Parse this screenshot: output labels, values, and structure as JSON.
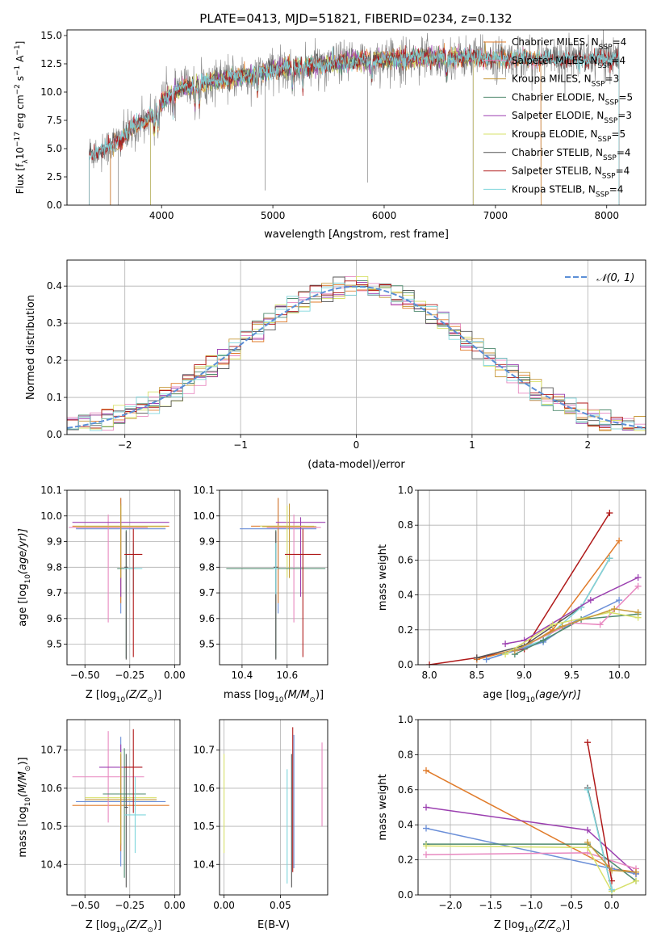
{
  "figure": {
    "title": "PLATE=0413, MJD=51821, FIBERID=0234, z=0.132"
  },
  "colors": {
    "Chabrier MILES": "#e07b2a",
    "Salpeter MILES": "#e889c0",
    "Kroupa MILES": "#c79a3c",
    "Chabrier ELODIE": "#4f8a6e",
    "Salpeter ELODIE": "#9b3fb0",
    "Kroupa ELODIE": "#d7e06a",
    "Chabrier STELIB": "#555555",
    "Salpeter STELIB": "#b01a1a",
    "Kroupa STELIB": "#7fd6dc",
    "gauss": "#5b8fd6",
    "extra_blue": "#6b8fd8"
  },
  "legend": {
    "items": [
      {
        "label": "Chabrier MILES, N",
        "sub": "SSP",
        "val": "=4"
      },
      {
        "label": "Salpeter MILES, N",
        "sub": "SSP",
        "val": "=4"
      },
      {
        "label": "Kroupa MILES, N",
        "sub": "SSP",
        "val": "=3"
      },
      {
        "label": "Chabrier ELODIE, N",
        "sub": "SSP",
        "val": "=5"
      },
      {
        "label": "Salpeter ELODIE, N",
        "sub": "SSP",
        "val": "=3"
      },
      {
        "label": "Kroupa ELODIE, N",
        "sub": "SSP",
        "val": "=5"
      },
      {
        "label": "Chabrier STELIB, N",
        "sub": "SSP",
        "val": "=4"
      },
      {
        "label": "Salpeter STELIB, N",
        "sub": "SSP",
        "val": "=4"
      },
      {
        "label": "Kroupa STELIB, N",
        "sub": "SSP",
        "val": "=4"
      }
    ],
    "gauss_label": "𝒩(0, 1)"
  },
  "chart_data": [
    {
      "id": "spectrum",
      "type": "line",
      "xlabel": "wavelength [Angstrom, rest frame]",
      "ylabel": "Flux [f",
      "ylabel_parts": [
        "Flux [f",
        "λ",
        "10",
        "−17",
        " erg cm",
        "−2",
        " s",
        "−1",
        " A",
        "−1",
        "]"
      ],
      "xlim": [
        3150,
        8350
      ],
      "ylim": [
        0,
        15.5
      ],
      "xticks": [
        4000,
        5000,
        6000,
        7000,
        8000
      ],
      "yticks": [
        0.0,
        2.5,
        5.0,
        7.5,
        10.0,
        12.5,
        15.0
      ],
      "ytick_labels": [
        "0.0",
        "2.5",
        "5.0",
        "7.5",
        "10.0",
        "12.5",
        "15.0"
      ],
      "grid": false,
      "continuum": {
        "x": [
          3350,
          3500,
          3650,
          3800,
          3950,
          4050,
          4200,
          4400,
          4600,
          4800,
          5000,
          5200,
          5400,
          5600,
          5800,
          6000,
          6200,
          6400,
          6600,
          6800,
          7000,
          7200,
          7400,
          7600,
          7800,
          8000,
          8100
        ],
        "y": [
          4.6,
          5.0,
          6.0,
          7.2,
          8.3,
          9.7,
          10.4,
          10.9,
          11.2,
          11.5,
          12.0,
          12.2,
          12.4,
          12.6,
          12.8,
          12.9,
          13.0,
          13.1,
          13.1,
          13.1,
          13.0,
          13.0,
          12.9,
          12.9,
          12.9,
          13.0,
          13.1
        ]
      }
    },
    {
      "id": "residuals",
      "type": "histogram",
      "xlabel": "(data-model)/error",
      "ylabel": "Normed distribution",
      "xlim": [
        -2.5,
        2.5
      ],
      "ylim": [
        0,
        0.47
      ],
      "xticks": [
        -2,
        -1,
        0,
        1,
        2
      ],
      "xtick_labels": [
        "−2",
        "−1",
        "0",
        "1",
        "2"
      ],
      "yticks": [
        0.0,
        0.1,
        0.2,
        0.3,
        0.4
      ],
      "ytick_labels": [
        "0.0",
        "0.1",
        "0.2",
        "0.3",
        "0.4"
      ],
      "grid": true,
      "legend_position": "top-right",
      "bin_width": 0.1
    },
    {
      "id": "age_vs_Z",
      "type": "errorbar",
      "xlabel": "Z [log",
      "xlabel_parts": [
        "Z [log",
        "10",
        "(Z/Z",
        "⊙",
        ")]"
      ],
      "ylabel_parts": [
        "age  [log",
        "10",
        "(age/yr)]"
      ],
      "xlim": [
        -0.6,
        0.03
      ],
      "ylim": [
        9.42,
        10.1
      ],
      "xticks": [
        -0.5,
        -0.25,
        0.0
      ],
      "xtick_labels": [
        "−0.50",
        "−0.25",
        "0.00"
      ],
      "yticks": [
        9.5,
        9.6,
        9.7,
        9.8,
        9.9,
        10.0,
        10.1
      ],
      "ytick_labels": [
        "9.5",
        "9.6",
        "9.7",
        "9.8",
        "9.9",
        "10.0",
        "10.1"
      ],
      "grid": true,
      "points": [
        {
          "series": "extra_blue",
          "x": -0.3,
          "xerr": 0.25,
          "y": 9.95,
          "yerr_lo": 0.33,
          "yerr_hi": 0.12
        },
        {
          "series": "Chabrier MILES",
          "x": -0.3,
          "xerr": 0.27,
          "y": 9.96,
          "yerr_lo": 0.3,
          "yerr_hi": 0.11
        },
        {
          "series": "Salpeter MILES",
          "x": -0.37,
          "xerr": 0.22,
          "y": 9.955,
          "yerr_lo": 0.37,
          "yerr_hi": 0.05
        },
        {
          "series": "Salpeter ELODIE",
          "x": -0.3,
          "xerr": 0.27,
          "y": 9.975,
          "yerr_lo": 0.29,
          "yerr_hi": 0.02
        },
        {
          "series": "Kroupa ELODIE",
          "x": -0.3,
          "xerr": 0.25,
          "y": 9.96,
          "yerr_lo": 0.2,
          "yerr_hi": 0.08
        },
        {
          "series": "Kroupa MILES",
          "x": -0.3,
          "xerr": 0.25,
          "y": 9.958,
          "yerr_lo": 0.2,
          "yerr_hi": 0.09
        },
        {
          "series": "Chabrier ELODIE",
          "x": -0.27,
          "xerr": 0.05,
          "y": 9.795,
          "yerr_lo": 0.35,
          "yerr_hi": 0.15
        },
        {
          "series": "Chabrier STELIB",
          "x": -0.27,
          "xerr": 0.01,
          "y": 9.8,
          "yerr_lo": 0.36,
          "yerr_hi": 0.14
        },
        {
          "series": "Kroupa STELIB",
          "x": -0.23,
          "xerr": 0.05,
          "y": 9.795,
          "yerr_lo": 0.1,
          "yerr_hi": 0.1
        },
        {
          "series": "Salpeter STELIB",
          "x": -0.23,
          "xerr": 0.05,
          "y": 9.85,
          "yerr_lo": 0.4,
          "yerr_hi": 0.1
        }
      ]
    },
    {
      "id": "age_vs_mass",
      "type": "errorbar",
      "xlabel_parts": [
        "mass [log",
        "10",
        "(M/M",
        "⊙",
        ")]"
      ],
      "xlim": [
        10.3,
        10.78
      ],
      "ylim": [
        9.42,
        10.1
      ],
      "xticks": [
        10.4,
        10.6
      ],
      "xtick_labels": [
        "10.4",
        "10.6"
      ],
      "yticks": [
        9.5,
        9.6,
        9.7,
        9.8,
        9.9,
        10.0,
        10.1
      ],
      "ytick_labels": [
        "9.5",
        "9.6",
        "9.7",
        "9.8",
        "9.9",
        "10.0",
        "10.1"
      ],
      "grid": true,
      "points": [
        {
          "series": "extra_blue",
          "x": 10.56,
          "xerr": 0.17,
          "y": 9.95,
          "yerr_lo": 0.33,
          "yerr_hi": 0.12
        },
        {
          "series": "Chabrier MILES",
          "x": 10.56,
          "xerr": 0.12,
          "y": 9.96,
          "yerr_lo": 0.3,
          "yerr_hi": 0.11
        },
        {
          "series": "Salpeter MILES",
          "x": 10.63,
          "xerr": 0.12,
          "y": 9.955,
          "yerr_lo": 0.37,
          "yerr_hi": 0.05
        },
        {
          "series": "Salpeter ELODIE",
          "x": 10.66,
          "xerr": 0.11,
          "y": 9.975,
          "yerr_lo": 0.29,
          "yerr_hi": 0.02
        },
        {
          "series": "Kroupa ELODIE",
          "x": 10.6,
          "xerr": 0.12,
          "y": 9.96,
          "yerr_lo": 0.2,
          "yerr_hi": 0.08
        },
        {
          "series": "Kroupa MILES",
          "x": 10.61,
          "xerr": 0.12,
          "y": 9.958,
          "yerr_lo": 0.2,
          "yerr_hi": 0.09
        },
        {
          "series": "Chabrier ELODIE",
          "x": 10.55,
          "xerr": 0.22,
          "y": 9.795,
          "yerr_lo": 0.35,
          "yerr_hi": 0.15
        },
        {
          "series": "Chabrier STELIB",
          "x": 10.55,
          "xerr": 0.01,
          "y": 9.8,
          "yerr_lo": 0.36,
          "yerr_hi": 0.14
        },
        {
          "series": "Kroupa STELIB",
          "x": 10.55,
          "xerr": 0.01,
          "y": 9.795,
          "yerr_lo": 0.1,
          "yerr_hi": 0.1
        },
        {
          "series": "Salpeter STELIB",
          "x": 10.67,
          "xerr": 0.08,
          "y": 9.85,
          "yerr_lo": 0.4,
          "yerr_hi": 0.1
        }
      ]
    },
    {
      "id": "massweight_vs_age",
      "type": "line",
      "xlabel_parts": [
        "age  [log",
        "10",
        "(age/yr)]"
      ],
      "ylabel": "mass weight",
      "xlim": [
        7.88,
        10.28
      ],
      "ylim": [
        0,
        1.0
      ],
      "xticks": [
        8.0,
        8.5,
        9.0,
        9.5,
        10.0
      ],
      "xtick_labels": [
        "8.0",
        "8.5",
        "9.0",
        "9.5",
        "10.0"
      ],
      "yticks": [
        0.0,
        0.2,
        0.4,
        0.6,
        0.8,
        1.0
      ],
      "ytick_labels": [
        "0.0",
        "0.2",
        "0.4",
        "0.6",
        "0.8",
        "1.0"
      ],
      "grid": true,
      "series": [
        {
          "name": "Salpeter STELIB",
          "x": [
            8.0,
            8.5,
            9.0,
            9.9
          ],
          "y": [
            0.0,
            0.04,
            0.09,
            0.87
          ]
        },
        {
          "name": "Chabrier MILES",
          "x": [
            8.5,
            9.0,
            9.3,
            10.0
          ],
          "y": [
            0.03,
            0.1,
            0.2,
            0.71
          ]
        },
        {
          "name": "Chabrier STELIB",
          "x": [
            8.5,
            9.0,
            9.6,
            9.9
          ],
          "y": [
            0.04,
            0.11,
            0.33,
            0.61
          ]
        },
        {
          "name": "Kroupa STELIB",
          "x": [
            8.6,
            9.2,
            9.6,
            9.9
          ],
          "y": [
            0.03,
            0.14,
            0.33,
            0.61
          ]
        },
        {
          "name": "Salpeter ELODIE",
          "x": [
            8.8,
            9.0,
            9.7,
            10.2
          ],
          "y": [
            0.12,
            0.14,
            0.37,
            0.5
          ]
        },
        {
          "name": "extra_blue",
          "x": [
            8.6,
            9.2,
            9.5,
            10.0
          ],
          "y": [
            0.03,
            0.13,
            0.24,
            0.37
          ]
        },
        {
          "name": "Chabrier ELODIE",
          "x": [
            8.9,
            9.2,
            9.6,
            10.2
          ],
          "y": [
            0.06,
            0.14,
            0.26,
            0.29
          ]
        },
        {
          "name": "Salpeter MILES",
          "x": [
            8.9,
            9.5,
            9.8,
            10.2
          ],
          "y": [
            0.08,
            0.24,
            0.23,
            0.45
          ]
        },
        {
          "name": "Kroupa ELODIE",
          "x": [
            8.8,
            9.3,
            9.9,
            10.2
          ],
          "y": [
            0.06,
            0.23,
            0.3,
            0.27
          ]
        },
        {
          "name": "Kroupa MILES",
          "x": [
            8.9,
            9.4,
            9.95,
            10.2
          ],
          "y": [
            0.08,
            0.22,
            0.32,
            0.3
          ]
        }
      ]
    },
    {
      "id": "mass_vs_Z",
      "type": "errorbar",
      "xlabel_parts": [
        "Z [log",
        "10",
        "(Z/Z",
        "⊙",
        ")]"
      ],
      "ylabel_parts": [
        "mass [log",
        "10",
        "(M/M",
        "⊙",
        ")]"
      ],
      "xlim": [
        -0.6,
        0.03
      ],
      "ylim": [
        10.32,
        10.78
      ],
      "xticks": [
        -0.5,
        -0.25,
        0.0
      ],
      "xtick_labels": [
        "−0.50",
        "−0.25",
        "0.00"
      ],
      "yticks": [
        10.4,
        10.5,
        10.6,
        10.7
      ],
      "ytick_labels": [
        "10.4",
        "10.5",
        "10.6",
        "10.7"
      ],
      "grid": true,
      "points": [
        {
          "series": "extra_blue",
          "x": -0.3,
          "xerr": 0.25,
          "y": 10.565,
          "yerr_lo": 0.17,
          "yerr_hi": 0.17
        },
        {
          "series": "Chabrier MILES",
          "x": -0.3,
          "xerr": 0.27,
          "y": 10.555,
          "yerr_lo": 0.12,
          "yerr_hi": 0.12
        },
        {
          "series": "Salpeter MILES",
          "x": -0.37,
          "xerr": 0.2,
          "y": 10.63,
          "yerr_lo": 0.12,
          "yerr_hi": 0.12
        },
        {
          "series": "Salpeter ELODIE",
          "x": -0.3,
          "xerr": 0.12,
          "y": 10.655,
          "yerr_lo": 0.11,
          "yerr_hi": 0.06
        },
        {
          "series": "Kroupa ELODIE",
          "x": -0.3,
          "xerr": 0.2,
          "y": 10.575,
          "yerr_lo": 0.12,
          "yerr_hi": 0.12
        },
        {
          "series": "Kroupa MILES",
          "x": -0.3,
          "xerr": 0.2,
          "y": 10.57,
          "yerr_lo": 0.12,
          "yerr_hi": 0.12
        },
        {
          "series": "Chabrier ELODIE",
          "x": -0.28,
          "xerr": 0.12,
          "y": 10.585,
          "yerr_lo": 0.22,
          "yerr_hi": 0.12
        },
        {
          "series": "Chabrier STELIB",
          "x": -0.27,
          "xerr": 0.01,
          "y": 10.55,
          "yerr_lo": 0.21,
          "yerr_hi": 0.14
        },
        {
          "series": "Kroupa STELIB",
          "x": -0.22,
          "xerr": 0.06,
          "y": 10.53,
          "yerr_lo": 0.1,
          "yerr_hi": 0.1
        },
        {
          "series": "Salpeter STELIB",
          "x": -0.23,
          "xerr": 0.05,
          "y": 10.655,
          "yerr_lo": 0.12,
          "yerr_hi": 0.1
        }
      ]
    },
    {
      "id": "mass_vs_ebv",
      "type": "errorbar",
      "xlabel": "E(B-V)",
      "xlim": [
        -0.004,
        0.092
      ],
      "ylim": [
        10.32,
        10.78
      ],
      "xticks": [
        0.0,
        0.05
      ],
      "xtick_labels": [
        "0.00",
        "0.05"
      ],
      "yticks": [
        10.4,
        10.5,
        10.6,
        10.7
      ],
      "ytick_labels": [
        "10.4",
        "10.5",
        "10.6",
        "10.7"
      ],
      "grid": true,
      "points": [
        {
          "series": "Kroupa ELODIE",
          "x": 0.0,
          "y": 10.57,
          "yerr_lo": 0.14,
          "yerr_hi": 0.12
        },
        {
          "series": "Kroupa STELIB",
          "x": 0.056,
          "y": 10.5,
          "yerr_lo": 0.15,
          "yerr_hi": 0.15
        },
        {
          "series": "Chabrier STELIB",
          "x": 0.06,
          "y": 10.55,
          "yerr_lo": 0.21,
          "yerr_hi": 0.14
        },
        {
          "series": "Salpeter STELIB",
          "x": 0.061,
          "y": 10.6,
          "yerr_lo": 0.22,
          "yerr_hi": 0.16
        },
        {
          "series": "extra_blue",
          "x": 0.062,
          "y": 10.56,
          "yerr_lo": 0.17,
          "yerr_hi": 0.18
        },
        {
          "series": "Salpeter MILES",
          "x": 0.087,
          "y": 10.61,
          "yerr_lo": 0.11,
          "yerr_hi": 0.11
        }
      ]
    },
    {
      "id": "massweight_vs_Z",
      "type": "line",
      "xlabel_parts": [
        "Z [log",
        "10",
        "(Z/Z",
        "⊙",
        ")]"
      ],
      "ylabel": "mass weight",
      "xlim": [
        -2.4,
        0.42
      ],
      "ylim": [
        0,
        1.0
      ],
      "xticks": [
        -2.0,
        -1.5,
        -1.0,
        -0.5,
        0.0
      ],
      "xtick_labels": [
        "−2.0",
        "−1.5",
        "−1.0",
        "−0.5",
        "0.0"
      ],
      "yticks": [
        0.0,
        0.2,
        0.4,
        0.6,
        0.8,
        1.0
      ],
      "ytick_labels": [
        "0.0",
        "0.2",
        "0.4",
        "0.6",
        "0.8",
        "1.0"
      ],
      "grid": true,
      "series": [
        {
          "name": "Chabrier MILES",
          "x": [
            -2.3,
            0.0,
            0.3
          ],
          "y": [
            0.71,
            0.15,
            0.13
          ]
        },
        {
          "name": "Salpeter ELODIE",
          "x": [
            -2.3,
            -0.3,
            0.3
          ],
          "y": [
            0.5,
            0.37,
            0.12
          ]
        },
        {
          "name": "extra_blue",
          "x": [
            -2.3,
            0.0,
            0.3
          ],
          "y": [
            0.38,
            0.15,
            0.12
          ]
        },
        {
          "name": "Salpeter MILES",
          "x": [
            -2.3,
            -0.3,
            0.3
          ],
          "y": [
            0.23,
            0.24,
            0.15
          ]
        },
        {
          "name": "Chabrier ELODIE",
          "x": [
            -2.3,
            -0.3,
            0.3
          ],
          "y": [
            0.29,
            0.29,
            0.08
          ]
        },
        {
          "name": "Kroupa ELODIE",
          "x": [
            -2.3,
            -0.3,
            0.0,
            0.3
          ],
          "y": [
            0.28,
            0.27,
            0.02,
            0.08
          ]
        },
        {
          "name": "Salpeter STELIB",
          "x": [
            -0.3,
            0.0
          ],
          "y": [
            0.87,
            0.08
          ]
        },
        {
          "name": "Chabrier STELIB",
          "x": [
            -0.3,
            0.0
          ],
          "y": [
            0.61,
            0.03
          ]
        },
        {
          "name": "Kroupa STELIB",
          "x": [
            -0.3,
            0.0
          ],
          "y": [
            0.6,
            0.03
          ]
        },
        {
          "name": "Kroupa MILES",
          "x": [
            -0.3,
            0.0,
            0.3
          ],
          "y": [
            0.3,
            0.14,
            0.13
          ]
        }
      ]
    }
  ]
}
